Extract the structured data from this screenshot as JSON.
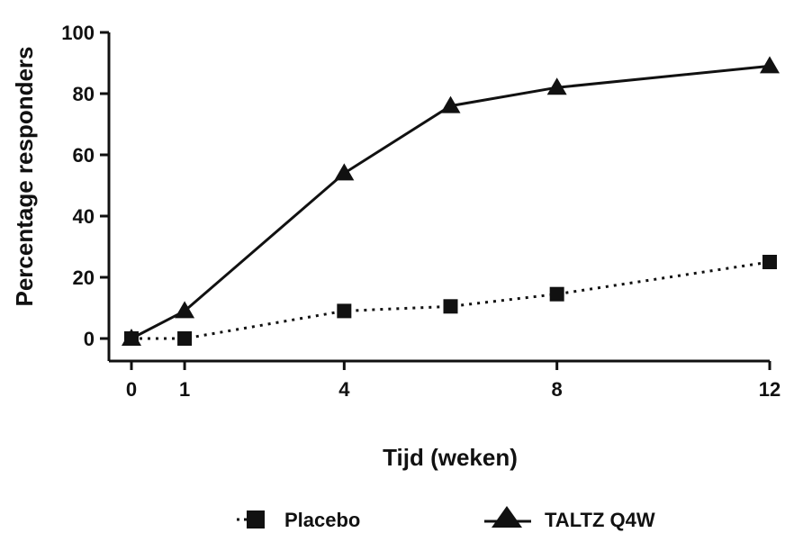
{
  "chart_data": {
    "type": "line",
    "xlabel": "Tijd (weken)",
    "ylabel": "Percentage responders",
    "xlim": [
      0,
      12
    ],
    "ylim": [
      0,
      100
    ],
    "x_ticks": [
      0,
      1,
      4,
      8,
      12
    ],
    "y_ticks": [
      0,
      20,
      40,
      60,
      80,
      100
    ],
    "grid": false,
    "legend_position": "bottom",
    "series": [
      {
        "name": "Placebo",
        "line_style": "dotted",
        "marker": "square",
        "color": "#111111",
        "x": [
          0,
          1,
          4,
          6,
          8,
          12
        ],
        "y": [
          0,
          0,
          9,
          10.5,
          14.5,
          25
        ]
      },
      {
        "name": "TALTZ Q4W",
        "line_style": "solid",
        "marker": "triangle",
        "color": "#111111",
        "x": [
          0,
          1,
          4,
          6,
          8,
          12
        ],
        "y": [
          0,
          9,
          54,
          76,
          82,
          89
        ]
      }
    ]
  }
}
